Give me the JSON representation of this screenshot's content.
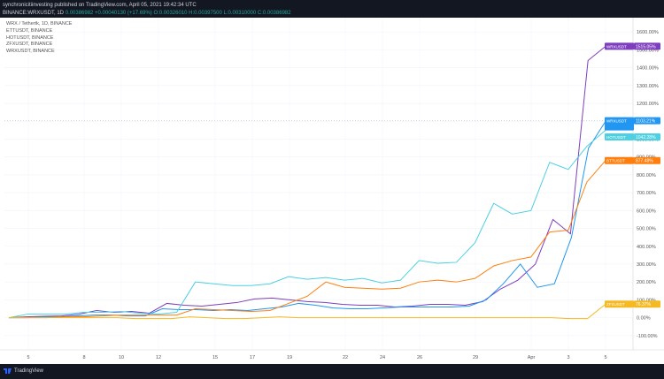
{
  "header": {
    "line1": "synchronicitiinvesting published on TradingView.com, April 05, 2021 19:42:34 UTC",
    "symbol": "BINANCE:WRXUSDT, 1D",
    "ohlc": "0.00386982 +0.00040130 (+17.69%) O:0.00326010 H:0.00397500 L:0.00310000 C:0.00386982"
  },
  "legend": [
    "WRX / Tethertk, 1D, BINANCE",
    "ETTUSDT, BINANCE",
    "HOTUSDT, BINANCE",
    "ZFXUSDT, BINANCE",
    "WRXUSDT, BINANCE"
  ],
  "footer": {
    "brand": "TradingView"
  },
  "chart_data": {
    "type": "line",
    "x_labels": [
      "5",
      "8",
      "10",
      "12",
      "15",
      "17",
      "19",
      "22",
      "24",
      "26",
      "29",
      "Apr",
      "3",
      "5"
    ],
    "ylabels": [
      "1600.00%",
      "1500.00%",
      "1400.00%",
      "1300.00%",
      "1200.00%",
      "1100.00%",
      "1000.00%",
      "900.00%",
      "800.00%",
      "700.00%",
      "600.00%",
      "500.00%",
      "400.00%",
      "300.00%",
      "200.00%",
      "100.00%",
      "0.00%",
      "-100.00%"
    ],
    "ylim": [
      -180,
      1680
    ],
    "series": [
      {
        "name": "WRXUSDT",
        "color": "#7e3fbf",
        "label": "1515.05%",
        "values": [
          0,
          5,
          8,
          10,
          20,
          40,
          30,
          35,
          25,
          80,
          70,
          65,
          75,
          85,
          105,
          110,
          100,
          90,
          85,
          75,
          70,
          70,
          60,
          65,
          75,
          75,
          70,
          90,
          160,
          210,
          300,
          550,
          470,
          1440,
          1520
        ]
      },
      {
        "name": "WRXUSDT",
        "color": "#2196f3",
        "label": "1103.21%",
        "label_sub": "04:17:26",
        "values": [
          0,
          0,
          5,
          5,
          10,
          15,
          15,
          10,
          10,
          50,
          45,
          45,
          40,
          45,
          40,
          50,
          60,
          80,
          70,
          55,
          50,
          50,
          55,
          60,
          60,
          60,
          60,
          65,
          100,
          190,
          300,
          170,
          190,
          450,
          950,
          1100
        ]
      },
      {
        "name": "HOTUSDT",
        "color": "#4dd0e1",
        "label": "1042.28%",
        "values": [
          0,
          20,
          20,
          20,
          30,
          30,
          35,
          25,
          20,
          30,
          200,
          190,
          180,
          180,
          190,
          230,
          215,
          225,
          210,
          220,
          195,
          210,
          320,
          305,
          310,
          420,
          640,
          580,
          600,
          870,
          830,
          960,
          1050
        ]
      },
      {
        "name": "BTTUSDT",
        "color": "#ff7f0e",
        "label": "877.48%",
        "values": [
          0,
          0,
          0,
          5,
          5,
          10,
          15,
          15,
          15,
          15,
          50,
          45,
          40,
          35,
          40,
          80,
          120,
          200,
          170,
          165,
          160,
          165,
          200,
          210,
          200,
          220,
          290,
          320,
          340,
          480,
          490,
          760,
          880
        ]
      },
      {
        "name": "ZFXUSDT",
        "color": "#f5b921",
        "label": "76.37%",
        "values": [
          0,
          0,
          0,
          0,
          0,
          0,
          0,
          -5,
          -5,
          -5,
          5,
          0,
          -5,
          -5,
          0,
          5,
          0,
          0,
          0,
          0,
          0,
          0,
          0,
          0,
          0,
          0,
          0,
          0,
          0,
          0,
          0,
          -5,
          -5,
          76
        ]
      }
    ]
  }
}
